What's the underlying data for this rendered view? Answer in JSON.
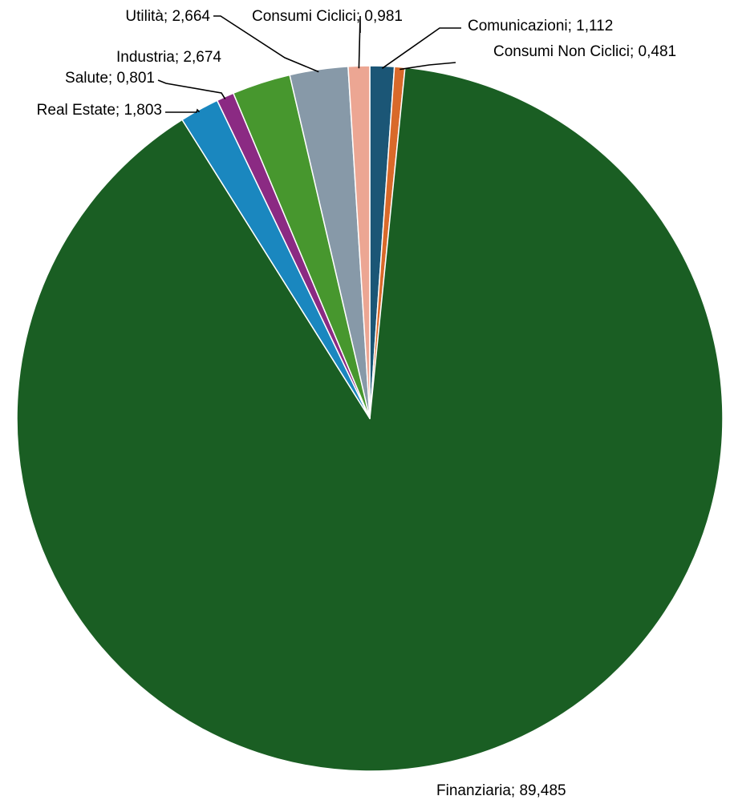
{
  "chart_data": {
    "type": "pie",
    "slices": [
      {
        "label": "Comunicazioni; 1,112",
        "value": 1.112,
        "color": "#1b5676"
      },
      {
        "label": "Consumi Non Ciclici; 0,481",
        "value": 0.481,
        "color": "#d9692a"
      },
      {
        "label": "Finanziaria; 89,485",
        "value": 89.485,
        "color": "#1a5e23"
      },
      {
        "label": "Real Estate; 1,803",
        "value": 1.803,
        "color": "#1a87bf"
      },
      {
        "label": "Salute; 0,801",
        "value": 0.801,
        "color": "#8b2a83"
      },
      {
        "label": "Industria; 2,674",
        "value": 2.674,
        "color": "#47972e"
      },
      {
        "label": "Utilità; 2,664",
        "value": 2.664,
        "color": "#8799a8"
      },
      {
        "label": "Consumi Ciclici; 0,981",
        "value": 0.981,
        "color": "#eca693"
      }
    ],
    "start_angle": "12 o'clock",
    "direction": "clockwise",
    "legend": "none"
  }
}
